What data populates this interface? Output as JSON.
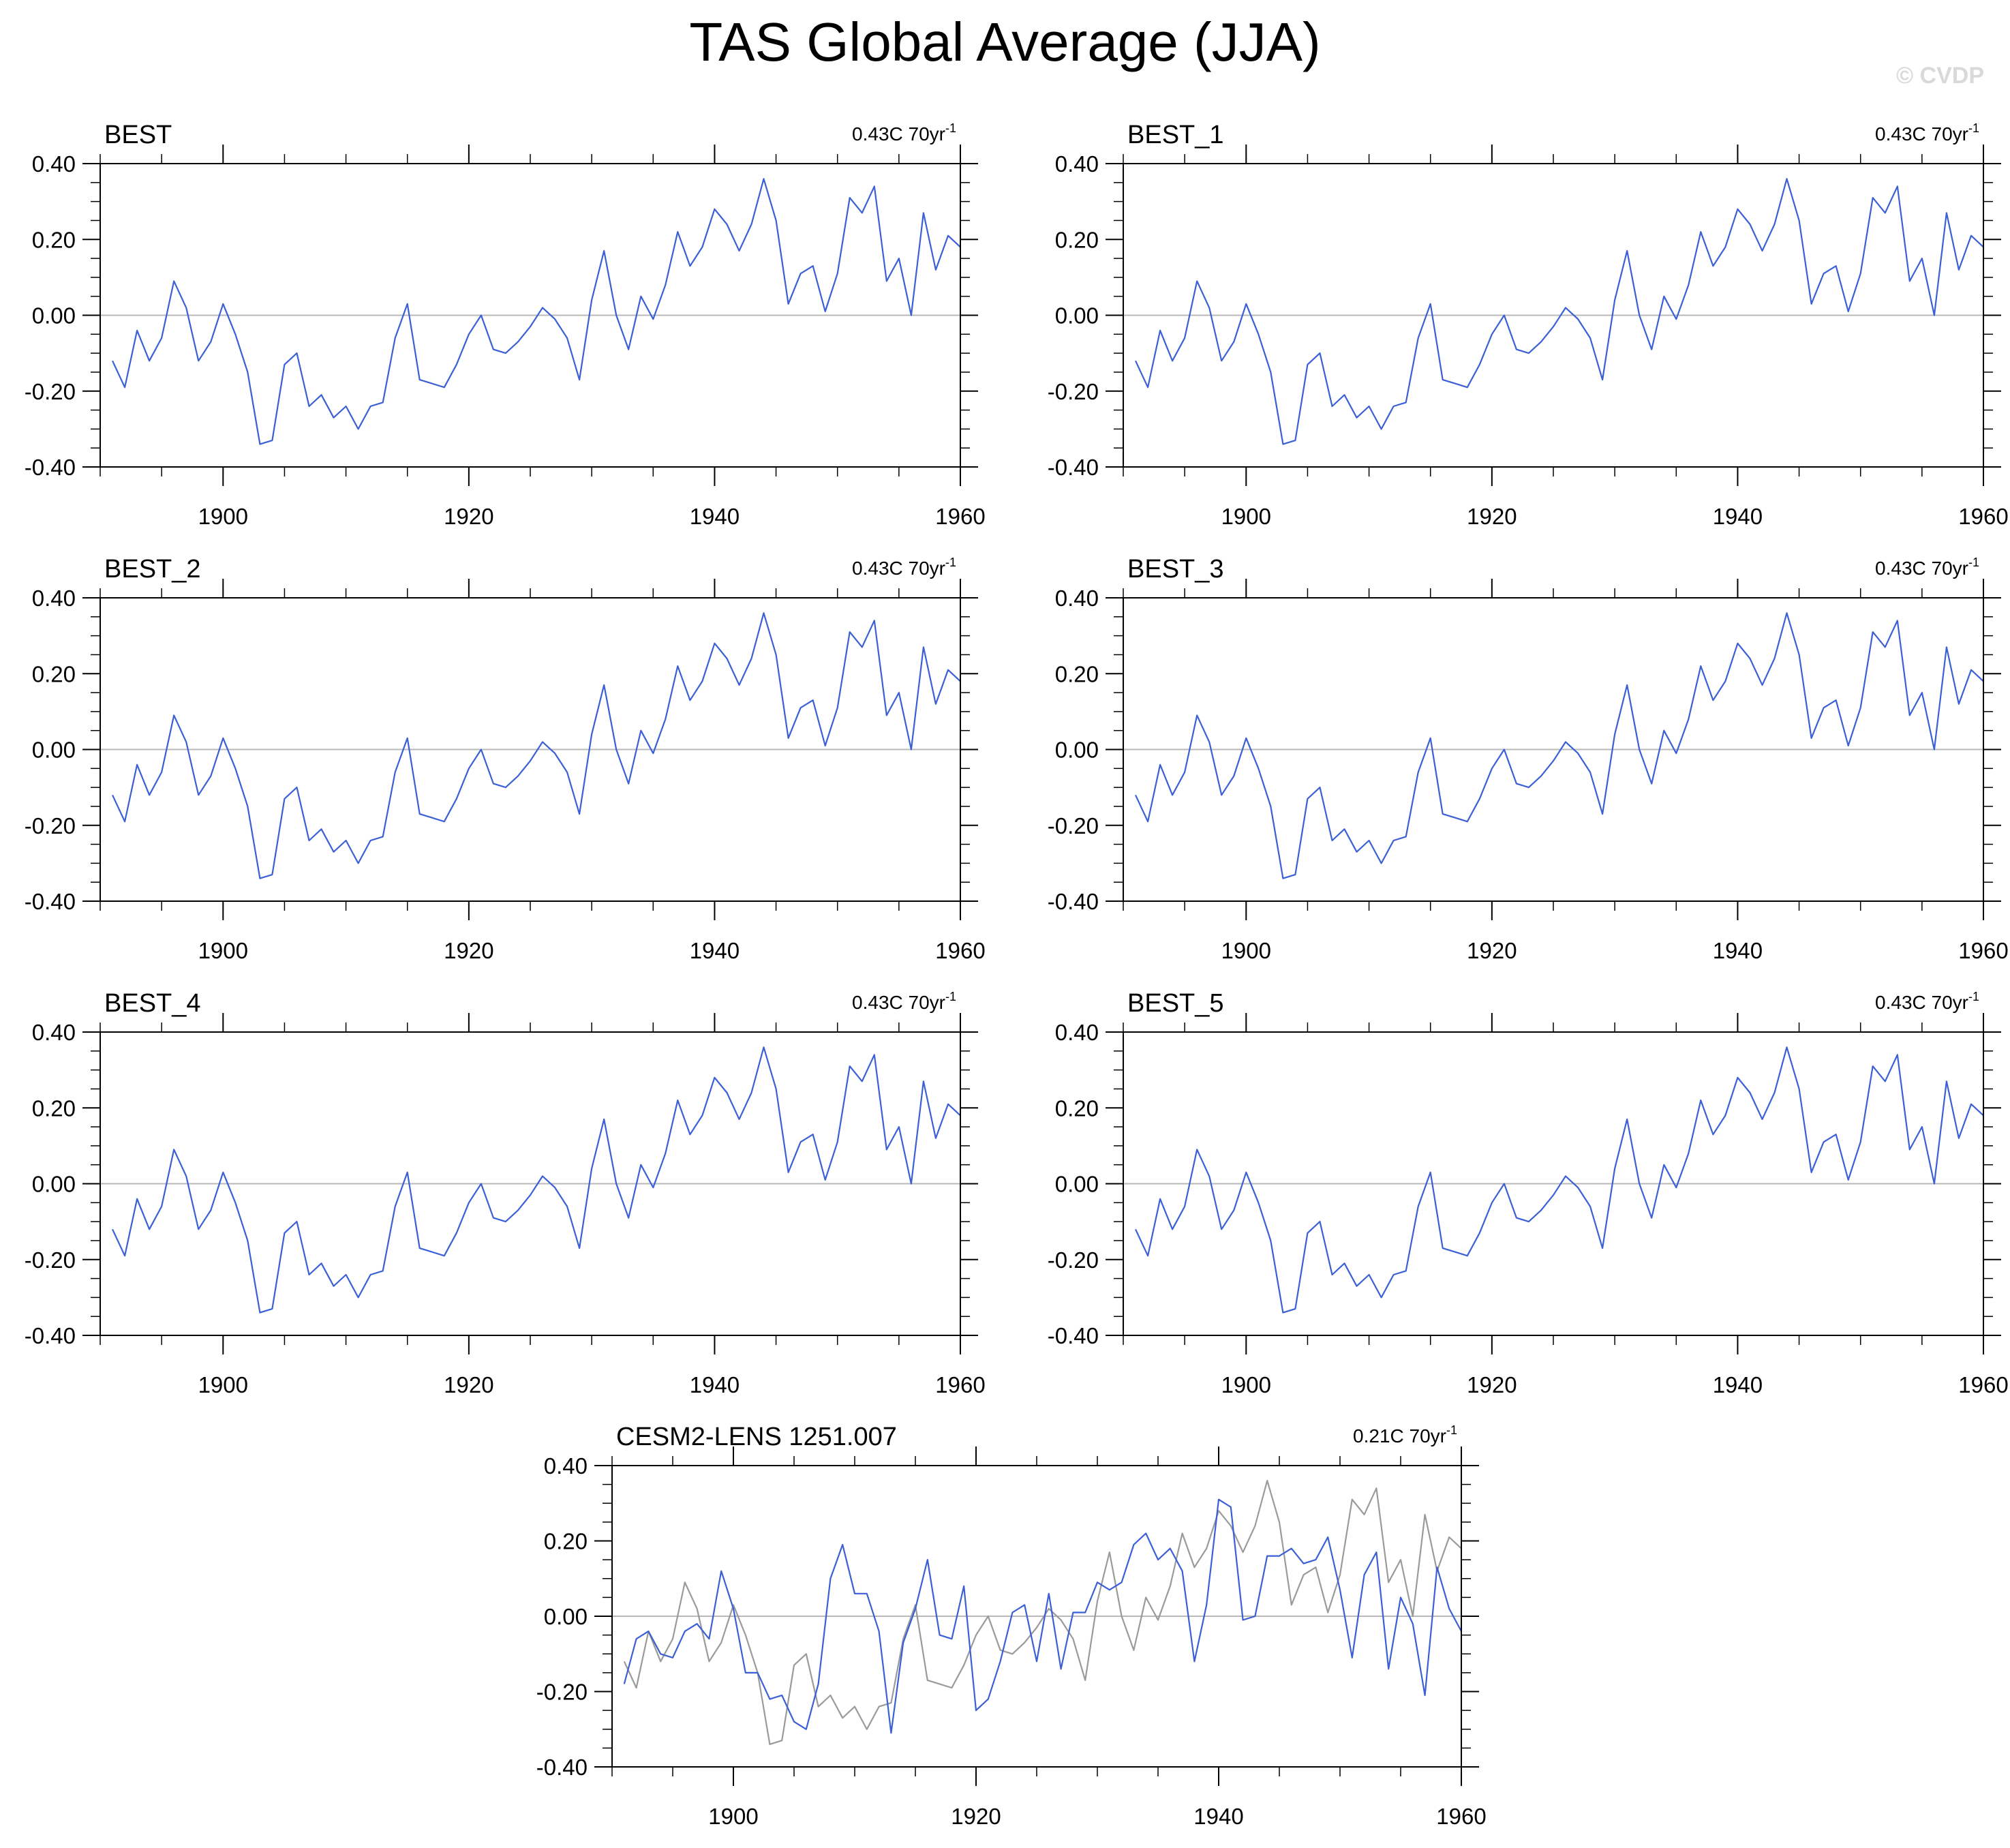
{
  "title": "TAS Global Average (JJA)",
  "watermark": "© CVDP",
  "colors": {
    "series": "#3b5fd6",
    "reference": "#9a9a9a",
    "zero_line": "#b8b8b8",
    "frame": "#000000"
  },
  "chart_data": [
    {
      "type": "line",
      "name": "BEST",
      "trend_label": "0.43C 70yr",
      "trend_sup": "-1",
      "xlim": [
        1890,
        1960
      ],
      "ylim": [
        -0.4,
        0.4
      ],
      "xticks": [
        1900,
        1920,
        1940,
        1960
      ],
      "yticks": [
        0.4,
        0.2,
        0.0,
        -0.2,
        -0.4
      ],
      "ytick_labels": [
        "0.40",
        "0.20",
        "0.00",
        "-0.20",
        "-0.40"
      ],
      "x_start": 1891,
      "series": [
        {
          "name": "BEST",
          "color": "#3b5fd6",
          "values": [
            -0.12,
            -0.19,
            -0.04,
            -0.12,
            -0.06,
            0.09,
            0.02,
            -0.12,
            -0.07,
            0.03,
            -0.05,
            -0.15,
            -0.34,
            -0.33,
            -0.13,
            -0.1,
            -0.24,
            -0.21,
            -0.27,
            -0.24,
            -0.3,
            -0.24,
            -0.23,
            -0.06,
            0.03,
            -0.17,
            -0.18,
            -0.19,
            -0.13,
            -0.05,
            0.0,
            -0.09,
            -0.1,
            -0.07,
            -0.03,
            0.02,
            -0.01,
            -0.06,
            -0.17,
            0.04,
            0.17,
            0.0,
            -0.09,
            0.05,
            -0.01,
            0.08,
            0.22,
            0.13,
            0.18,
            0.28,
            0.24,
            0.17,
            0.24,
            0.36,
            0.25,
            0.03,
            0.11,
            0.13,
            0.01,
            0.11,
            0.31,
            0.27,
            0.34,
            0.09,
            0.15,
            0.0,
            0.27,
            0.12,
            0.21,
            0.18
          ]
        }
      ]
    },
    {
      "type": "line",
      "name": "BEST_1",
      "trend_label": "0.43C 70yr",
      "trend_sup": "-1",
      "xlim": [
        1890,
        1960
      ],
      "ylim": [
        -0.4,
        0.4
      ],
      "xticks": [
        1900,
        1920,
        1940,
        1960
      ],
      "yticks": [
        0.4,
        0.2,
        0.0,
        -0.2,
        -0.4
      ],
      "ytick_labels": [
        "0.40",
        "0.20",
        "0.00",
        "-0.20",
        "-0.40"
      ],
      "x_start": 1891,
      "series": [
        {
          "name": "BEST_1",
          "color": "#3b5fd6",
          "values": [
            -0.12,
            -0.19,
            -0.04,
            -0.12,
            -0.06,
            0.09,
            0.02,
            -0.12,
            -0.07,
            0.03,
            -0.05,
            -0.15,
            -0.34,
            -0.33,
            -0.13,
            -0.1,
            -0.24,
            -0.21,
            -0.27,
            -0.24,
            -0.3,
            -0.24,
            -0.23,
            -0.06,
            0.03,
            -0.17,
            -0.18,
            -0.19,
            -0.13,
            -0.05,
            0.0,
            -0.09,
            -0.1,
            -0.07,
            -0.03,
            0.02,
            -0.01,
            -0.06,
            -0.17,
            0.04,
            0.17,
            0.0,
            -0.09,
            0.05,
            -0.01,
            0.08,
            0.22,
            0.13,
            0.18,
            0.28,
            0.24,
            0.17,
            0.24,
            0.36,
            0.25,
            0.03,
            0.11,
            0.13,
            0.01,
            0.11,
            0.31,
            0.27,
            0.34,
            0.09,
            0.15,
            0.0,
            0.27,
            0.12,
            0.21,
            0.18
          ]
        }
      ]
    },
    {
      "type": "line",
      "name": "BEST_2",
      "trend_label": "0.43C 70yr",
      "trend_sup": "-1",
      "xlim": [
        1890,
        1960
      ],
      "ylim": [
        -0.4,
        0.4
      ],
      "xticks": [
        1900,
        1920,
        1940,
        1960
      ],
      "yticks": [
        0.4,
        0.2,
        0.0,
        -0.2,
        -0.4
      ],
      "ytick_labels": [
        "0.40",
        "0.20",
        "0.00",
        "-0.20",
        "-0.40"
      ],
      "x_start": 1891,
      "series": [
        {
          "name": "BEST_2",
          "color": "#3b5fd6",
          "values": [
            -0.12,
            -0.19,
            -0.04,
            -0.12,
            -0.06,
            0.09,
            0.02,
            -0.12,
            -0.07,
            0.03,
            -0.05,
            -0.15,
            -0.34,
            -0.33,
            -0.13,
            -0.1,
            -0.24,
            -0.21,
            -0.27,
            -0.24,
            -0.3,
            -0.24,
            -0.23,
            -0.06,
            0.03,
            -0.17,
            -0.18,
            -0.19,
            -0.13,
            -0.05,
            0.0,
            -0.09,
            -0.1,
            -0.07,
            -0.03,
            0.02,
            -0.01,
            -0.06,
            -0.17,
            0.04,
            0.17,
            0.0,
            -0.09,
            0.05,
            -0.01,
            0.08,
            0.22,
            0.13,
            0.18,
            0.28,
            0.24,
            0.17,
            0.24,
            0.36,
            0.25,
            0.03,
            0.11,
            0.13,
            0.01,
            0.11,
            0.31,
            0.27,
            0.34,
            0.09,
            0.15,
            0.0,
            0.27,
            0.12,
            0.21,
            0.18
          ]
        }
      ]
    },
    {
      "type": "line",
      "name": "BEST_3",
      "trend_label": "0.43C 70yr",
      "trend_sup": "-1",
      "xlim": [
        1890,
        1960
      ],
      "ylim": [
        -0.4,
        0.4
      ],
      "xticks": [
        1900,
        1920,
        1940,
        1960
      ],
      "yticks": [
        0.4,
        0.2,
        0.0,
        -0.2,
        -0.4
      ],
      "ytick_labels": [
        "0.40",
        "0.20",
        "0.00",
        "-0.20",
        "-0.40"
      ],
      "x_start": 1891,
      "series": [
        {
          "name": "BEST_3",
          "color": "#3b5fd6",
          "values": [
            -0.12,
            -0.19,
            -0.04,
            -0.12,
            -0.06,
            0.09,
            0.02,
            -0.12,
            -0.07,
            0.03,
            -0.05,
            -0.15,
            -0.34,
            -0.33,
            -0.13,
            -0.1,
            -0.24,
            -0.21,
            -0.27,
            -0.24,
            -0.3,
            -0.24,
            -0.23,
            -0.06,
            0.03,
            -0.17,
            -0.18,
            -0.19,
            -0.13,
            -0.05,
            0.0,
            -0.09,
            -0.1,
            -0.07,
            -0.03,
            0.02,
            -0.01,
            -0.06,
            -0.17,
            0.04,
            0.17,
            0.0,
            -0.09,
            0.05,
            -0.01,
            0.08,
            0.22,
            0.13,
            0.18,
            0.28,
            0.24,
            0.17,
            0.24,
            0.36,
            0.25,
            0.03,
            0.11,
            0.13,
            0.01,
            0.11,
            0.31,
            0.27,
            0.34,
            0.09,
            0.15,
            0.0,
            0.27,
            0.12,
            0.21,
            0.18
          ]
        }
      ]
    },
    {
      "type": "line",
      "name": "BEST_4",
      "trend_label": "0.43C 70yr",
      "trend_sup": "-1",
      "xlim": [
        1890,
        1960
      ],
      "ylim": [
        -0.4,
        0.4
      ],
      "xticks": [
        1900,
        1920,
        1940,
        1960
      ],
      "yticks": [
        0.4,
        0.2,
        0.0,
        -0.2,
        -0.4
      ],
      "ytick_labels": [
        "0.40",
        "0.20",
        "0.00",
        "-0.20",
        "-0.40"
      ],
      "x_start": 1891,
      "series": [
        {
          "name": "BEST_4",
          "color": "#3b5fd6",
          "values": [
            -0.12,
            -0.19,
            -0.04,
            -0.12,
            -0.06,
            0.09,
            0.02,
            -0.12,
            -0.07,
            0.03,
            -0.05,
            -0.15,
            -0.34,
            -0.33,
            -0.13,
            -0.1,
            -0.24,
            -0.21,
            -0.27,
            -0.24,
            -0.3,
            -0.24,
            -0.23,
            -0.06,
            0.03,
            -0.17,
            -0.18,
            -0.19,
            -0.13,
            -0.05,
            0.0,
            -0.09,
            -0.1,
            -0.07,
            -0.03,
            0.02,
            -0.01,
            -0.06,
            -0.17,
            0.04,
            0.17,
            0.0,
            -0.09,
            0.05,
            -0.01,
            0.08,
            0.22,
            0.13,
            0.18,
            0.28,
            0.24,
            0.17,
            0.24,
            0.36,
            0.25,
            0.03,
            0.11,
            0.13,
            0.01,
            0.11,
            0.31,
            0.27,
            0.34,
            0.09,
            0.15,
            0.0,
            0.27,
            0.12,
            0.21,
            0.18
          ]
        }
      ]
    },
    {
      "type": "line",
      "name": "BEST_5",
      "trend_label": "0.43C 70yr",
      "trend_sup": "-1",
      "xlim": [
        1890,
        1960
      ],
      "ylim": [
        -0.4,
        0.4
      ],
      "xticks": [
        1900,
        1920,
        1940,
        1960
      ],
      "yticks": [
        0.4,
        0.2,
        0.0,
        -0.2,
        -0.4
      ],
      "ytick_labels": [
        "0.40",
        "0.20",
        "0.00",
        "-0.20",
        "-0.40"
      ],
      "x_start": 1891,
      "series": [
        {
          "name": "BEST_5",
          "color": "#3b5fd6",
          "values": [
            -0.12,
            -0.19,
            -0.04,
            -0.12,
            -0.06,
            0.09,
            0.02,
            -0.12,
            -0.07,
            0.03,
            -0.05,
            -0.15,
            -0.34,
            -0.33,
            -0.13,
            -0.1,
            -0.24,
            -0.21,
            -0.27,
            -0.24,
            -0.3,
            -0.24,
            -0.23,
            -0.06,
            0.03,
            -0.17,
            -0.18,
            -0.19,
            -0.13,
            -0.05,
            0.0,
            -0.09,
            -0.1,
            -0.07,
            -0.03,
            0.02,
            -0.01,
            -0.06,
            -0.17,
            0.04,
            0.17,
            0.0,
            -0.09,
            0.05,
            -0.01,
            0.08,
            0.22,
            0.13,
            0.18,
            0.28,
            0.24,
            0.17,
            0.24,
            0.36,
            0.25,
            0.03,
            0.11,
            0.13,
            0.01,
            0.11,
            0.31,
            0.27,
            0.34,
            0.09,
            0.15,
            0.0,
            0.27,
            0.12,
            0.21,
            0.18
          ]
        }
      ]
    },
    {
      "type": "line",
      "name": "CESM2-LENS 1251.007",
      "trend_label": "0.21C 70yr",
      "trend_sup": "-1",
      "xlim": [
        1890,
        1960
      ],
      "ylim": [
        -0.4,
        0.4
      ],
      "xticks": [
        1900,
        1920,
        1940,
        1960
      ],
      "yticks": [
        0.4,
        0.2,
        0.0,
        -0.2,
        -0.4
      ],
      "ytick_labels": [
        "0.40",
        "0.20",
        "0.00",
        "-0.20",
        "-0.40"
      ],
      "x_start": 1891,
      "series": [
        {
          "name": "CESM2-LENS 1251.007",
          "color": "#3b5fd6",
          "values": [
            -0.18,
            -0.06,
            -0.04,
            -0.1,
            -0.11,
            -0.04,
            -0.02,
            -0.06,
            0.12,
            0.02,
            -0.15,
            -0.15,
            -0.22,
            -0.21,
            -0.28,
            -0.3,
            -0.18,
            0.1,
            0.19,
            0.06,
            0.06,
            -0.04,
            -0.31,
            -0.07,
            0.02,
            0.15,
            -0.05,
            -0.06,
            0.08,
            -0.25,
            -0.22,
            -0.12,
            0.01,
            0.03,
            -0.12,
            0.06,
            -0.14,
            0.01,
            0.01,
            0.09,
            0.07,
            0.09,
            0.19,
            0.22,
            0.15,
            0.18,
            0.12,
            -0.12,
            0.03,
            0.31,
            0.29,
            -0.01,
            0.0,
            0.16,
            0.16,
            0.18,
            0.14,
            0.15,
            0.21,
            0.07,
            -0.11,
            0.11,
            0.17,
            -0.14,
            0.05,
            -0.02,
            -0.21,
            0.13,
            0.02,
            -0.04
          ]
        },
        {
          "name": "BEST",
          "color": "#9a9a9a",
          "values": [
            -0.12,
            -0.19,
            -0.04,
            -0.12,
            -0.06,
            0.09,
            0.02,
            -0.12,
            -0.07,
            0.03,
            -0.05,
            -0.15,
            -0.34,
            -0.33,
            -0.13,
            -0.1,
            -0.24,
            -0.21,
            -0.27,
            -0.24,
            -0.3,
            -0.24,
            -0.23,
            -0.06,
            0.03,
            -0.17,
            -0.18,
            -0.19,
            -0.13,
            -0.05,
            0.0,
            -0.09,
            -0.1,
            -0.07,
            -0.03,
            0.02,
            -0.01,
            -0.06,
            -0.17,
            0.04,
            0.17,
            0.0,
            -0.09,
            0.05,
            -0.01,
            0.08,
            0.22,
            0.13,
            0.18,
            0.28,
            0.24,
            0.17,
            0.24,
            0.36,
            0.25,
            0.03,
            0.11,
            0.13,
            0.01,
            0.11,
            0.31,
            0.27,
            0.34,
            0.09,
            0.15,
            0.0,
            0.27,
            0.12,
            0.21,
            0.18
          ]
        }
      ]
    }
  ]
}
